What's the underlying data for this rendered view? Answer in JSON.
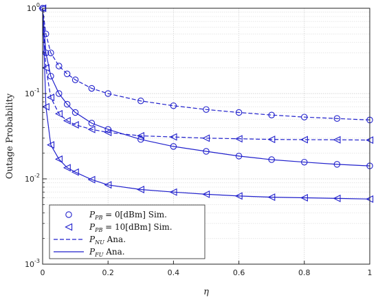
{
  "chart_data": {
    "type": "line",
    "title": "",
    "xlabel": "η",
    "ylabel": "Outage Probability",
    "xlim": [
      0,
      1
    ],
    "ylim": [
      0.001,
      1
    ],
    "yscale": "log",
    "grid": true,
    "x_ticks": [
      "0",
      "0.2",
      "0.4",
      "0.6",
      "0.8",
      "1"
    ],
    "y_ticks": [
      {
        "base": "10",
        "exp": "0",
        "value": 1
      },
      {
        "base": "10",
        "exp": "-1",
        "value": 0.1
      },
      {
        "base": "10",
        "exp": "-2",
        "value": 0.01
      },
      {
        "base": "10",
        "exp": "-3",
        "value": 0.001
      }
    ],
    "color": "#1f1fcc",
    "legend_position": "bottom-left",
    "legend": [
      {
        "marker": "circle",
        "label_main": "P",
        "label_sub": "PB",
        "label_rest": " = 0[dBm] Sim."
      },
      {
        "marker": "triangle-left",
        "label_main": "P",
        "label_sub": "PB",
        "label_rest": " = 10[dBm] Sim."
      },
      {
        "line": "dashed",
        "label_main": "P",
        "label_sub": "NU",
        "label_rest": " Ana."
      },
      {
        "line": "solid",
        "label_main": "P",
        "label_sub": "FU",
        "label_rest": " Ana."
      }
    ],
    "series": [
      {
        "legend_ref": "P_PB = 0 NU",
        "line": "dashed",
        "marker": "circle",
        "x": [
          0,
          0.01,
          0.025,
          0.05,
          0.075,
          0.1,
          0.15,
          0.2,
          0.3,
          0.4,
          0.5,
          0.6,
          0.7,
          0.8,
          0.9,
          1.0
        ],
        "y": [
          1.0,
          0.5,
          0.3,
          0.21,
          0.17,
          0.145,
          0.115,
          0.1,
          0.082,
          0.072,
          0.065,
          0.06,
          0.056,
          0.053,
          0.051,
          0.049
        ]
      },
      {
        "legend_ref": "P_PB = 0 FU",
        "line": "solid",
        "marker": "circle",
        "x": [
          0,
          0.01,
          0.025,
          0.05,
          0.075,
          0.1,
          0.15,
          0.2,
          0.3,
          0.4,
          0.5,
          0.6,
          0.7,
          0.8,
          0.9,
          1.0
        ],
        "y": [
          1.0,
          0.3,
          0.16,
          0.1,
          0.075,
          0.06,
          0.045,
          0.038,
          0.029,
          0.024,
          0.021,
          0.0185,
          0.0168,
          0.0157,
          0.0148,
          0.0142
        ]
      },
      {
        "legend_ref": "P_PB = 10 NU",
        "line": "dashed",
        "marker": "triangle-left",
        "x": [
          0,
          0.01,
          0.025,
          0.05,
          0.075,
          0.1,
          0.15,
          0.2,
          0.3,
          0.4,
          0.5,
          0.6,
          0.7,
          0.8,
          0.9,
          1.0
        ],
        "y": [
          1.0,
          0.2,
          0.09,
          0.058,
          0.048,
          0.043,
          0.038,
          0.035,
          0.032,
          0.031,
          0.03,
          0.0295,
          0.029,
          0.0288,
          0.0287,
          0.0285
        ]
      },
      {
        "legend_ref": "P_PB = 10 FU",
        "line": "solid",
        "marker": "triangle-left",
        "x": [
          0,
          0.01,
          0.025,
          0.05,
          0.075,
          0.1,
          0.15,
          0.2,
          0.3,
          0.4,
          0.5,
          0.6,
          0.7,
          0.8,
          0.9,
          1.0
        ],
        "y": [
          1.0,
          0.07,
          0.025,
          0.017,
          0.0135,
          0.012,
          0.0098,
          0.0085,
          0.0075,
          0.007,
          0.0066,
          0.0063,
          0.0061,
          0.006,
          0.0059,
          0.0058
        ]
      }
    ]
  }
}
